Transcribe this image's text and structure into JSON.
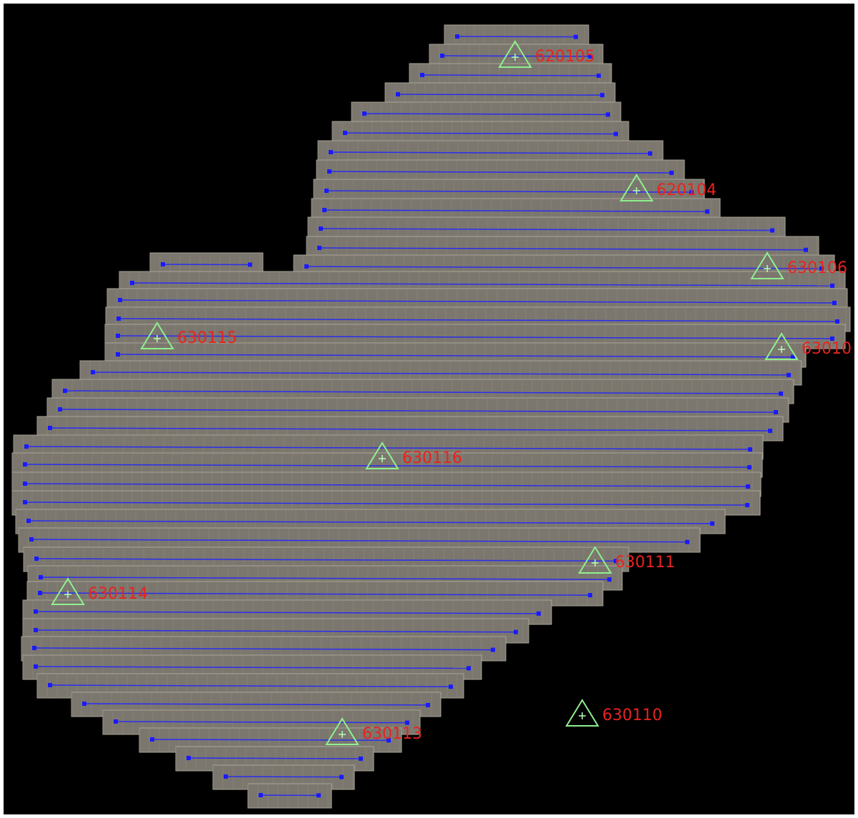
{
  "control_points": [
    {
      "label": "620105"
    },
    {
      "label": "620104"
    },
    {
      "label": "630106"
    },
    {
      "label": "63010"
    },
    {
      "label": "630115"
    },
    {
      "label": "630116"
    },
    {
      "label": "630111"
    },
    {
      "label": "630114"
    },
    {
      "label": "630110"
    },
    {
      "label": "630113"
    }
  ]
}
